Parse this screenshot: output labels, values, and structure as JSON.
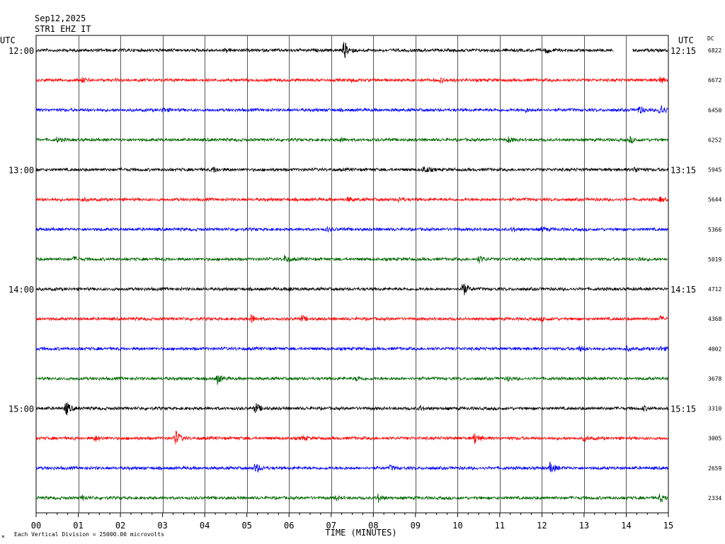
{
  "header": {
    "date": "Sep12,2025",
    "station": "STR1 EHZ IT",
    "utc_left": "UTC",
    "utc_right": "UTC",
    "dc_label": "DC"
  },
  "footer": {
    "scale_note": "Each Vertical Division = 25000.00 microvolts",
    "mark": "×"
  },
  "chart_data": {
    "type": "line",
    "xlabel": "TIME (MINUTES)",
    "x_ticks": [
      "00",
      "01",
      "02",
      "03",
      "04",
      "05",
      "06",
      "07",
      "08",
      "09",
      "10",
      "11",
      "12",
      "13",
      "14",
      "15"
    ],
    "xlim": [
      0,
      15
    ],
    "grid": true,
    "trace_colors": [
      "#000000",
      "#ff0000",
      "#0000ff",
      "#006600"
    ],
    "left_time_labels": [
      "12:00",
      "13:00",
      "14:00",
      "15:00"
    ],
    "right_time_labels": [
      "12:15",
      "13:15",
      "14:15",
      "15:15"
    ],
    "traces": [
      {
        "dc": "6822",
        "events": [
          [
            4.5,
            2
          ],
          [
            7.3,
            14
          ],
          [
            12.1,
            4
          ]
        ],
        "gap": [
          13.7,
          14.15
        ]
      },
      {
        "dc": "6672",
        "events": [
          [
            1.1,
            3
          ],
          [
            7.5,
            2
          ],
          [
            9.6,
            3
          ],
          [
            14.8,
            4
          ]
        ]
      },
      {
        "dc": "6450",
        "events": [
          [
            3.0,
            3
          ],
          [
            11.6,
            3
          ],
          [
            14.3,
            6
          ],
          [
            14.8,
            10
          ]
        ]
      },
      {
        "dc": "6252",
        "events": [
          [
            0.5,
            3
          ],
          [
            7.2,
            3
          ],
          [
            11.2,
            4
          ],
          [
            14.1,
            4
          ]
        ]
      },
      {
        "dc": "5945",
        "events": [
          [
            4.2,
            4
          ],
          [
            9.2,
            6
          ],
          [
            14.2,
            4
          ]
        ]
      },
      {
        "dc": "5644",
        "events": [
          [
            1.1,
            2
          ],
          [
            7.4,
            3
          ],
          [
            8.6,
            3
          ],
          [
            14.8,
            3
          ]
        ]
      },
      {
        "dc": "5366",
        "events": [
          [
            6.9,
            3
          ],
          [
            11.3,
            3
          ],
          [
            12.0,
            3
          ]
        ]
      },
      {
        "dc": "5019",
        "events": [
          [
            0.9,
            3
          ],
          [
            5.9,
            5
          ],
          [
            10.5,
            5
          ],
          [
            14.3,
            3
          ]
        ]
      },
      {
        "dc": "4712",
        "events": [
          [
            6.0,
            3
          ],
          [
            10.1,
            14
          ]
        ]
      },
      {
        "dc": "4368",
        "events": [
          [
            5.1,
            6
          ],
          [
            6.3,
            4
          ],
          [
            12.0,
            3
          ],
          [
            14.8,
            3
          ]
        ]
      },
      {
        "dc": "4002",
        "events": [
          [
            12.9,
            4
          ],
          [
            14.0,
            3
          ],
          [
            14.8,
            3
          ]
        ]
      },
      {
        "dc": "3678",
        "events": [
          [
            4.3,
            7
          ],
          [
            7.6,
            3
          ],
          [
            11.2,
            3
          ]
        ]
      },
      {
        "dc": "3310",
        "events": [
          [
            0.7,
            11
          ],
          [
            5.2,
            8
          ],
          [
            9.1,
            3
          ],
          [
            14.4,
            3
          ]
        ]
      },
      {
        "dc": "3005",
        "events": [
          [
            1.4,
            4
          ],
          [
            3.3,
            12
          ],
          [
            6.3,
            3
          ],
          [
            10.4,
            8
          ],
          [
            13.0,
            3
          ]
        ]
      },
      {
        "dc": "2659",
        "events": [
          [
            5.2,
            8
          ],
          [
            8.4,
            3
          ],
          [
            12.2,
            8
          ]
        ]
      },
      {
        "dc": "2334",
        "events": [
          [
            1.1,
            3
          ],
          [
            7.1,
            3
          ],
          [
            8.1,
            6
          ],
          [
            14.8,
            6
          ]
        ]
      }
    ]
  }
}
